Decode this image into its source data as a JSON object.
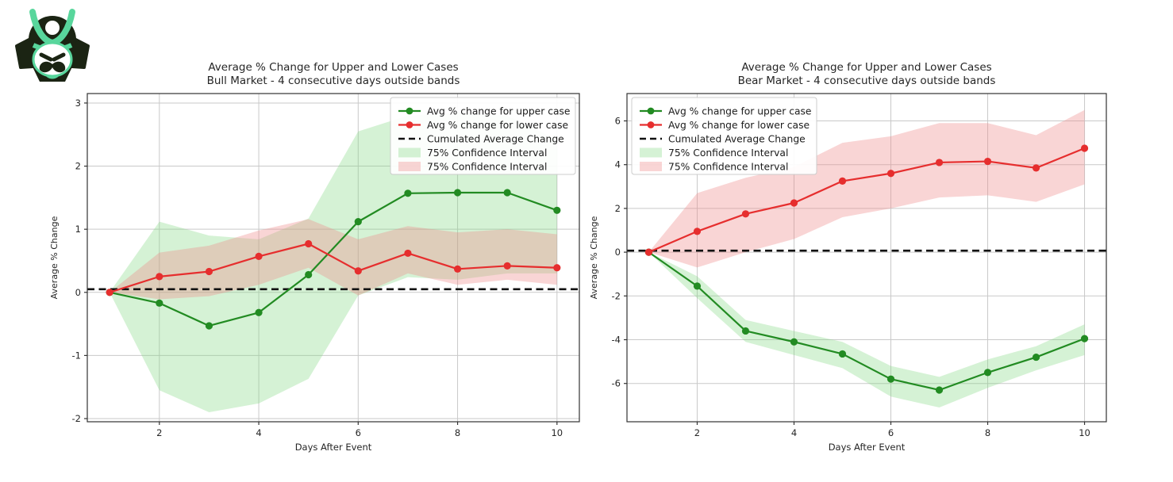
{
  "logo": {
    "name": "samurai helmet logo",
    "dark_color": "#1b2413",
    "accent_color": "#58d69c"
  },
  "colors": {
    "green_line": "#228b22",
    "red_line": "#e62e2e",
    "green_band": "#7ed97e",
    "red_band": "#ef8a8a",
    "green_band_opacity": 0.33,
    "red_band_opacity": 0.36,
    "dashed_line": "#111111",
    "grid": "#c9c9c9",
    "spine": "#333333",
    "text": "#262626",
    "legend_border": "#cccccc",
    "legend_bg": "#ffffff"
  },
  "chart_data": [
    {
      "type": "line",
      "title": "Average % Change for Upper and Lower Cases",
      "subtitle": "Bull Market - 4 consecutive days outside bands",
      "xlabel": "Days After Event",
      "ylabel": "Average % Change",
      "x": [
        1,
        2,
        3,
        4,
        5,
        6,
        7,
        8,
        9,
        10
      ],
      "xticks": [
        2,
        4,
        6,
        8,
        10
      ],
      "yticks": [
        -2,
        -1,
        0,
        1,
        2,
        3
      ],
      "xlim": [
        0.55,
        10.45
      ],
      "ylim": [
        -2.05,
        3.15
      ],
      "grid": true,
      "legend_position": "upper-right",
      "series": [
        {
          "name": "Avg % change for upper case",
          "kind": "line",
          "color_key": "green_line",
          "values": [
            0,
            -0.17,
            -0.53,
            -0.32,
            0.28,
            1.12,
            1.57,
            1.58,
            1.58,
            1.3
          ]
        },
        {
          "name": "Avg % change for lower case",
          "kind": "line",
          "color_key": "red_line",
          "values": [
            0,
            0.25,
            0.33,
            0.57,
            0.77,
            0.34,
            0.62,
            0.37,
            0.42,
            0.39
          ]
        },
        {
          "name": "Cumulated Average Change",
          "kind": "hline",
          "value": 0.05
        },
        {
          "name": "75% Confidence Interval",
          "kind": "band",
          "color_key": "green_band",
          "hi": [
            0,
            1.12,
            0.9,
            0.84,
            1.17,
            2.55,
            2.8,
            2.85,
            2.8,
            2.42
          ],
          "lo": [
            0,
            -1.55,
            -1.9,
            -1.76,
            -1.37,
            -0.05,
            0.24,
            0.2,
            0.3,
            0.3
          ]
        },
        {
          "name": "75% Confidence Interval",
          "kind": "band",
          "color_key": "red_band",
          "hi": [
            0,
            0.63,
            0.74,
            0.98,
            1.16,
            0.84,
            1.05,
            0.95,
            1.0,
            0.92
          ],
          "lo": [
            0,
            -0.11,
            -0.06,
            0.12,
            0.39,
            -0.05,
            0.3,
            0.12,
            0.2,
            0.12
          ]
        }
      ]
    },
    {
      "type": "line",
      "title": "Average % Change for Upper and Lower Cases",
      "subtitle": "Bear Market - 4 consecutive days outside bands",
      "xlabel": "Days After Event",
      "ylabel": "Average % Change",
      "x": [
        1,
        2,
        3,
        4,
        5,
        6,
        7,
        8,
        9,
        10
      ],
      "xticks": [
        2,
        4,
        6,
        8,
        10
      ],
      "yticks": [
        -6,
        -4,
        -2,
        0,
        2,
        4,
        6
      ],
      "xlim": [
        0.55,
        10.45
      ],
      "ylim": [
        -7.75,
        7.25
      ],
      "grid": true,
      "legend_position": "upper-left",
      "series": [
        {
          "name": "Avg % change for upper case",
          "kind": "line",
          "color_key": "green_line",
          "values": [
            0,
            -1.55,
            -3.6,
            -4.1,
            -4.65,
            -5.8,
            -6.3,
            -5.5,
            -4.8,
            -3.95
          ]
        },
        {
          "name": "Avg % change for lower case",
          "kind": "line",
          "color_key": "red_line",
          "values": [
            0,
            0.95,
            1.75,
            2.25,
            3.25,
            3.6,
            4.1,
            4.15,
            3.85,
            4.75
          ]
        },
        {
          "name": "Cumulated Average Change",
          "kind": "hline",
          "value": 0.07
        },
        {
          "name": "75% Confidence Interval",
          "kind": "band",
          "color_key": "green_band",
          "hi": [
            0,
            -1.1,
            -3.1,
            -3.6,
            -4.1,
            -5.2,
            -5.7,
            -4.9,
            -4.3,
            -3.3
          ],
          "lo": [
            0,
            -2.1,
            -4.1,
            -4.7,
            -5.3,
            -6.6,
            -7.1,
            -6.2,
            -5.4,
            -4.7
          ]
        },
        {
          "name": "75% Confidence Interval",
          "kind": "band",
          "color_key": "red_band",
          "hi": [
            0,
            2.7,
            3.4,
            3.9,
            5.0,
            5.3,
            5.9,
            5.9,
            5.35,
            6.5
          ],
          "lo": [
            0,
            -0.7,
            0.0,
            0.6,
            1.6,
            2.0,
            2.5,
            2.6,
            2.3,
            3.1
          ]
        }
      ]
    }
  ]
}
